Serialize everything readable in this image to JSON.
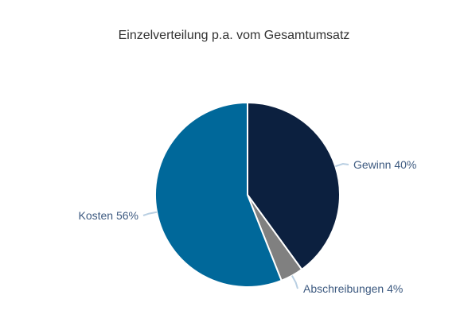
{
  "chart_data": {
    "type": "pie",
    "title": "Einzelverteilung p.a. vom Gesamtumsatz",
    "start_angle_deg": 0,
    "direction": "clockwise",
    "slices": [
      {
        "label": "Gewinn",
        "value": 40,
        "display": "Gewinn 40%",
        "color": "#0c203f"
      },
      {
        "label": "Abschreibungen",
        "value": 4,
        "display": "Abschreibungen 4%",
        "color": "#808080"
      },
      {
        "label": "Kosten",
        "value": 56,
        "display": "Kosten 56%",
        "color": "#00689a"
      }
    ],
    "label_color": "#3d5a80",
    "connector_color": "#b9cfe2",
    "border_color": "#ffffff"
  }
}
